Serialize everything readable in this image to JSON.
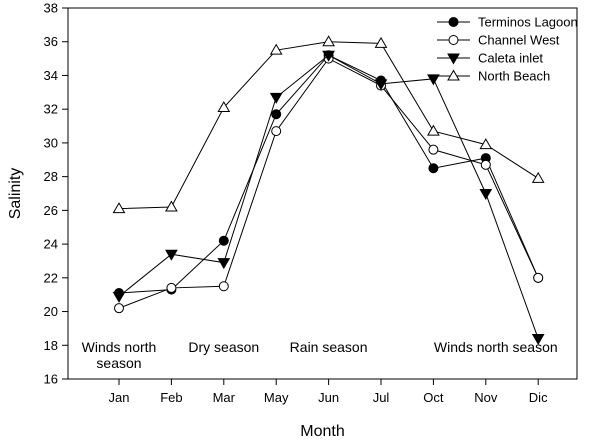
{
  "chart_data": {
    "type": "line",
    "title": "",
    "xlabel": "Month",
    "ylabel": "Salinity",
    "categories": [
      "Jan",
      "Feb",
      "Mar",
      "May",
      "Jun",
      "Jul",
      "Oct",
      "Nov",
      "Dic"
    ],
    "ylim": [
      16,
      38
    ],
    "yticks": [
      16,
      18,
      20,
      22,
      24,
      26,
      28,
      30,
      32,
      34,
      36,
      38
    ],
    "grid": false,
    "legend_position": "top-right",
    "series": [
      {
        "name": "Terminos Lagoon",
        "marker": "filled-circle",
        "values": [
          21.1,
          21.3,
          24.2,
          31.7,
          35.2,
          33.7,
          28.5,
          29.1,
          22.0
        ]
      },
      {
        "name": "Channel West",
        "marker": "open-circle",
        "values": [
          20.2,
          21.4,
          21.5,
          30.7,
          35.0,
          33.4,
          29.6,
          28.7,
          22.0
        ]
      },
      {
        "name": "Caleta inlet",
        "marker": "filled-triangle-down",
        "values": [
          20.9,
          23.4,
          22.9,
          32.7,
          35.2,
          33.5,
          33.8,
          27.0,
          18.4
        ]
      },
      {
        "name": "North Beach",
        "marker": "open-triangle-up",
        "values": [
          26.1,
          26.2,
          32.1,
          35.5,
          36.0,
          35.9,
          30.7,
          29.9,
          27.9
        ]
      }
    ],
    "annotations": [
      {
        "lines": [
          "Winds north",
          "season"
        ],
        "at_category": "Jan",
        "y": 17.6
      },
      {
        "lines": [
          "Dry season"
        ],
        "at_category": "Mar",
        "y": 17.6
      },
      {
        "lines": [
          "Rain season"
        ],
        "at_category": "Jun",
        "y": 17.6
      },
      {
        "lines": [
          "Winds north season"
        ],
        "at_category": "Nov",
        "y": 17.6
      }
    ]
  }
}
